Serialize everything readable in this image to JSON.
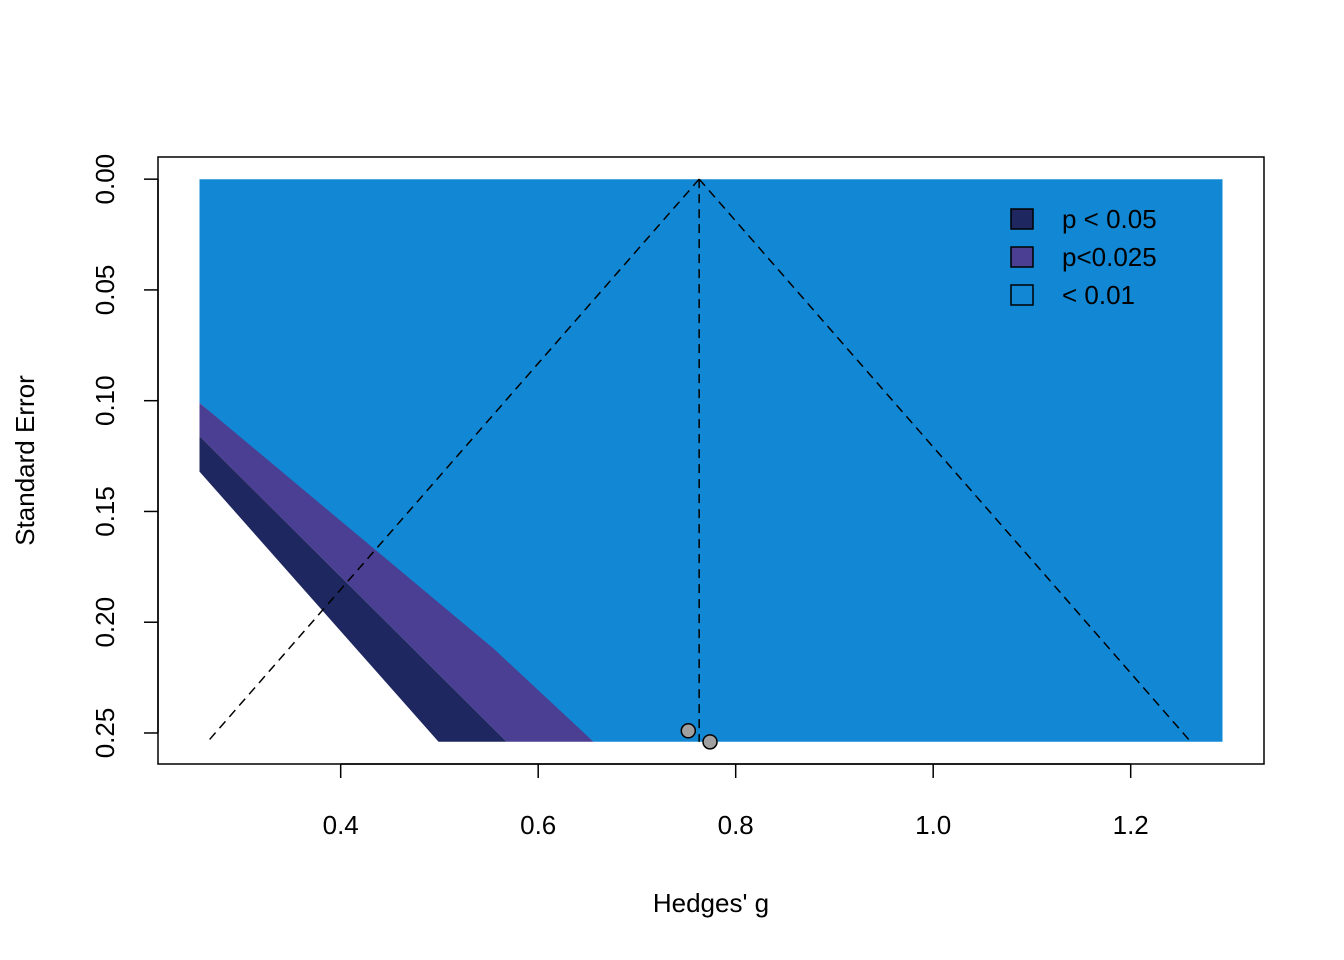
{
  "chart_data": {
    "type": "scatter",
    "subtype": "contour-enhanced funnel plot",
    "title": "",
    "xlabel": "Hedges' g",
    "ylabel": "Standard Error",
    "xlim": [
      0.215,
      1.335
    ],
    "ylim": [
      0.264,
      -0.01
    ],
    "y_axis_reversed": true,
    "xticks": [
      0.4,
      0.6,
      0.8,
      1.0,
      1.2
    ],
    "xtick_labels": [
      "0.4",
      "0.6",
      "0.8",
      "1.0",
      "1.2"
    ],
    "yticks": [
      0.0,
      0.05,
      0.1,
      0.15,
      0.2,
      0.25
    ],
    "ytick_labels": [
      "0.00",
      "0.05",
      "0.10",
      "0.15",
      "0.20",
      "0.25"
    ],
    "grid": false,
    "legend_position": "top-right",
    "legend": [
      {
        "label": "p < 0.05",
        "color": "#1f2761"
      },
      {
        "label": "p<0.025",
        "color": "#4a3f92"
      },
      {
        "label": "< 0.01",
        "color": "#1288d4"
      }
    ],
    "contour_region": {
      "x_min": 0.257,
      "x_max": 1.293,
      "se_max": 0.254
    },
    "contour_boundaries": {
      "p05": {
        "x_at_se_0": 0.257,
        "slope": 1.645
      },
      "p025": {
        "x_at_se_0": 0.257,
        "slope": 1.96
      },
      "p01": {
        "x_at_se_0": 0.257,
        "slope": 2.576
      }
    },
    "pooled_estimate": 0.763,
    "funnel_se_max": 0.254,
    "points": [
      {
        "x": 0.752,
        "se": 0.249
      },
      {
        "x": 0.774,
        "se": 0.254
      }
    ],
    "colors": {
      "p05": "#1f2761",
      "p025": "#4a3f92",
      "p01": "#1288d4",
      "point_fill": "#a0a0a0",
      "point_stroke": "#000000"
    }
  }
}
